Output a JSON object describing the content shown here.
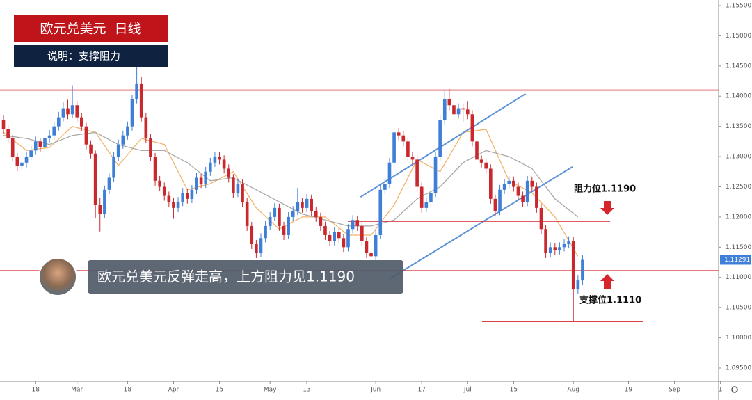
{
  "title": "欧元兑美元  日线",
  "subtitle": "说明：支撑阻力",
  "caption": "欧元兑美元反弹走高，上方阻力见1.1190",
  "chart_data": {
    "type": "candlestick",
    "up_color": "#3f7fd8",
    "down_color": "#c9282d",
    "candles": [
      [
        1.136,
        1.1368,
        1.1338,
        1.1345
      ],
      [
        1.1345,
        1.1352,
        1.1322,
        1.133
      ],
      [
        1.133,
        1.1336,
        1.1292,
        1.13
      ],
      [
        1.13,
        1.1306,
        1.1276,
        1.1285
      ],
      [
        1.1285,
        1.1298,
        1.1278,
        1.129
      ],
      [
        1.129,
        1.1307,
        1.1282,
        1.13
      ],
      [
        1.13,
        1.1318,
        1.1294,
        1.131
      ],
      [
        1.131,
        1.1333,
        1.1303,
        1.1325
      ],
      [
        1.1325,
        1.1331,
        1.1308,
        1.1315
      ],
      [
        1.1315,
        1.1338,
        1.1309,
        1.133
      ],
      [
        1.133,
        1.1344,
        1.1322,
        1.1335
      ],
      [
        1.1335,
        1.1358,
        1.1328,
        1.135
      ],
      [
        1.135,
        1.1374,
        1.1343,
        1.1365
      ],
      [
        1.1365,
        1.139,
        1.1358,
        1.138
      ],
      [
        1.138,
        1.1394,
        1.1362,
        1.137
      ],
      [
        1.137,
        1.1418,
        1.1364,
        1.1385
      ],
      [
        1.1385,
        1.1392,
        1.1358,
        1.1365
      ],
      [
        1.1365,
        1.1372,
        1.1342,
        1.135
      ],
      [
        1.135,
        1.1356,
        1.1312,
        1.132
      ],
      [
        1.132,
        1.1327,
        1.1297,
        1.1305
      ],
      [
        1.1305,
        1.131,
        1.1198,
        1.122
      ],
      [
        1.122,
        1.1232,
        1.1176,
        1.1205
      ],
      [
        1.1205,
        1.1252,
        1.1198,
        1.1245
      ],
      [
        1.1245,
        1.1272,
        1.1238,
        1.1265
      ],
      [
        1.1265,
        1.1308,
        1.1258,
        1.13
      ],
      [
        1.13,
        1.1328,
        1.1293,
        1.132
      ],
      [
        1.132,
        1.1343,
        1.1313,
        1.1335
      ],
      [
        1.1335,
        1.1358,
        1.1328,
        1.135
      ],
      [
        1.135,
        1.1402,
        1.1343,
        1.1395
      ],
      [
        1.1395,
        1.1448,
        1.1388,
        1.142
      ],
      [
        1.142,
        1.1432,
        1.1358,
        1.1365
      ],
      [
        1.1365,
        1.1372,
        1.1322,
        1.133
      ],
      [
        1.133,
        1.1338,
        1.1292,
        1.13
      ],
      [
        1.13,
        1.1306,
        1.1252,
        1.126
      ],
      [
        1.126,
        1.1268,
        1.1243,
        1.125
      ],
      [
        1.125,
        1.1257,
        1.1227,
        1.1235
      ],
      [
        1.1235,
        1.1242,
        1.1217,
        1.1225
      ],
      [
        1.1225,
        1.1232,
        1.1197,
        1.1215
      ],
      [
        1.1215,
        1.1233,
        1.1208,
        1.1225
      ],
      [
        1.1225,
        1.1248,
        1.1218,
        1.124
      ],
      [
        1.124,
        1.1246,
        1.1222,
        1.123
      ],
      [
        1.123,
        1.1253,
        1.1223,
        1.1245
      ],
      [
        1.1245,
        1.1273,
        1.1238,
        1.1265
      ],
      [
        1.1265,
        1.1271,
        1.1248,
        1.1255
      ],
      [
        1.1255,
        1.1283,
        1.1248,
        1.1275
      ],
      [
        1.1275,
        1.1298,
        1.1268,
        1.129
      ],
      [
        1.129,
        1.1308,
        1.1283,
        1.13
      ],
      [
        1.13,
        1.1307,
        1.1287,
        1.1295
      ],
      [
        1.1295,
        1.1302,
        1.1272,
        1.128
      ],
      [
        1.128,
        1.1287,
        1.1257,
        1.1265
      ],
      [
        1.1265,
        1.1271,
        1.1232,
        1.124
      ],
      [
        1.124,
        1.1263,
        1.1233,
        1.1255
      ],
      [
        1.1255,
        1.1262,
        1.1217,
        1.1225
      ],
      [
        1.1225,
        1.1231,
        1.1177,
        1.1185
      ],
      [
        1.1185,
        1.1192,
        1.1147,
        1.1155
      ],
      [
        1.1155,
        1.1162,
        1.1132,
        1.114
      ],
      [
        1.114,
        1.1173,
        1.1133,
        1.1165
      ],
      [
        1.1165,
        1.1193,
        1.1158,
        1.1185
      ],
      [
        1.1185,
        1.1208,
        1.1178,
        1.12
      ],
      [
        1.12,
        1.1223,
        1.1193,
        1.1215
      ],
      [
        1.1215,
        1.1222,
        1.1177,
        1.1185
      ],
      [
        1.1185,
        1.1192,
        1.1162,
        1.117
      ],
      [
        1.117,
        1.1208,
        1.1163,
        1.12
      ],
      [
        1.12,
        1.1218,
        1.1193,
        1.121
      ],
      [
        1.121,
        1.1248,
        1.1203,
        1.1225
      ],
      [
        1.1225,
        1.1232,
        1.1207,
        1.1215
      ],
      [
        1.1215,
        1.1238,
        1.1208,
        1.123
      ],
      [
        1.123,
        1.1237,
        1.1202,
        1.121
      ],
      [
        1.121,
        1.1217,
        1.1192,
        1.12
      ],
      [
        1.12,
        1.1207,
        1.1177,
        1.1185
      ],
      [
        1.1185,
        1.1192,
        1.1162,
        1.117
      ],
      [
        1.117,
        1.1177,
        1.1152,
        1.116
      ],
      [
        1.116,
        1.1183,
        1.1153,
        1.1175
      ],
      [
        1.1175,
        1.1182,
        1.1157,
        1.1165
      ],
      [
        1.1165,
        1.1172,
        1.1142,
        1.115
      ],
      [
        1.115,
        1.1188,
        1.1143,
        1.118
      ],
      [
        1.118,
        1.1203,
        1.1173,
        1.1195
      ],
      [
        1.1195,
        1.1202,
        1.1177,
        1.1185
      ],
      [
        1.1185,
        1.1192,
        1.1152,
        1.116
      ],
      [
        1.116,
        1.1167,
        1.1132,
        1.114
      ],
      [
        1.114,
        1.1147,
        1.1117,
        1.1135
      ],
      [
        1.1135,
        1.1178,
        1.1128,
        1.117
      ],
      [
        1.117,
        1.1253,
        1.1163,
        1.1245
      ],
      [
        1.1245,
        1.1263,
        1.1238,
        1.1255
      ],
      [
        1.1255,
        1.1298,
        1.1248,
        1.129
      ],
      [
        1.129,
        1.1348,
        1.1283,
        1.134
      ],
      [
        1.134,
        1.1347,
        1.1327,
        1.1335
      ],
      [
        1.1335,
        1.1342,
        1.1317,
        1.1325
      ],
      [
        1.1325,
        1.1332,
        1.1292,
        1.13
      ],
      [
        1.13,
        1.1307,
        1.1287,
        1.1295
      ],
      [
        1.1295,
        1.1302,
        1.1242,
        1.125
      ],
      [
        1.125,
        1.1257,
        1.1207,
        1.1215
      ],
      [
        1.1215,
        1.1233,
        1.1208,
        1.1225
      ],
      [
        1.1225,
        1.1248,
        1.1218,
        1.124
      ],
      [
        1.124,
        1.1308,
        1.1233,
        1.13
      ],
      [
        1.13,
        1.1368,
        1.1293,
        1.136
      ],
      [
        1.136,
        1.141,
        1.1353,
        1.1395
      ],
      [
        1.1395,
        1.1412,
        1.1377,
        1.1385
      ],
      [
        1.1385,
        1.1392,
        1.1362,
        1.137
      ],
      [
        1.137,
        1.1388,
        1.1363,
        1.138
      ],
      [
        1.138,
        1.1387,
        1.1358,
        1.1378
      ],
      [
        1.1378,
        1.1392,
        1.1362,
        1.137
      ],
      [
        1.137,
        1.1377,
        1.1317,
        1.1325
      ],
      [
        1.1325,
        1.1332,
        1.1287,
        1.1295
      ],
      [
        1.1295,
        1.1302,
        1.1282,
        1.129
      ],
      [
        1.129,
        1.1297,
        1.1272,
        1.128
      ],
      [
        1.128,
        1.1287,
        1.1222,
        1.123
      ],
      [
        1.123,
        1.1237,
        1.1202,
        1.121
      ],
      [
        1.121,
        1.1253,
        1.1203,
        1.1245
      ],
      [
        1.1245,
        1.1263,
        1.1238,
        1.1255
      ],
      [
        1.1255,
        1.1268,
        1.1248,
        1.126
      ],
      [
        1.126,
        1.1267,
        1.1242,
        1.125
      ],
      [
        1.125,
        1.1257,
        1.1227,
        1.1235
      ],
      [
        1.1235,
        1.1242,
        1.1217,
        1.1225
      ],
      [
        1.1225,
        1.1268,
        1.1218,
        1.126
      ],
      [
        1.126,
        1.1267,
        1.1242,
        1.125
      ],
      [
        1.125,
        1.1257,
        1.1207,
        1.1215
      ],
      [
        1.1215,
        1.1222,
        1.1172,
        1.118
      ],
      [
        1.118,
        1.1187,
        1.1132,
        1.114
      ],
      [
        1.114,
        1.1158,
        1.1133,
        1.115
      ],
      [
        1.115,
        1.1157,
        1.1137,
        1.1145
      ],
      [
        1.1145,
        1.1158,
        1.1138,
        1.115
      ],
      [
        1.115,
        1.1163,
        1.1143,
        1.1155
      ],
      [
        1.1155,
        1.1168,
        1.1148,
        1.116
      ],
      [
        1.116,
        1.1167,
        1.1027,
        1.108
      ],
      [
        1.108,
        1.1103,
        1.1073,
        1.1095
      ],
      [
        1.1095,
        1.1137,
        1.1088,
        1.11291
      ]
    ],
    "ma": [
      {
        "color": "#f2b46b",
        "x": [
          0,
          5,
          10,
          15,
          20,
          25,
          30,
          35,
          40,
          45,
          50,
          55,
          60,
          65,
          70,
          75,
          80,
          85,
          90,
          95,
          100,
          105,
          110,
          115,
          120,
          125
        ],
        "values": [
          1.134,
          1.131,
          1.1315,
          1.135,
          1.134,
          1.1285,
          1.133,
          1.132,
          1.1245,
          1.1255,
          1.1275,
          1.1215,
          1.118,
          1.12,
          1.12,
          1.117,
          1.117,
          1.122,
          1.1295,
          1.1275,
          1.134,
          1.1345,
          1.126,
          1.124,
          1.12,
          1.1135
        ]
      },
      {
        "color": "#a8a8a8",
        "x": [
          0,
          5,
          10,
          15,
          20,
          25,
          30,
          35,
          40,
          45,
          50,
          55,
          60,
          65,
          70,
          75,
          80,
          85,
          90,
          95,
          100,
          105,
          110,
          115,
          120,
          125
        ],
        "values": [
          1.1335,
          1.133,
          1.132,
          1.1335,
          1.134,
          1.132,
          1.131,
          1.131,
          1.129,
          1.126,
          1.1265,
          1.1245,
          1.1225,
          1.1205,
          1.1195,
          1.1185,
          1.1185,
          1.1195,
          1.123,
          1.125,
          1.129,
          1.131,
          1.13,
          1.128,
          1.123,
          1.12
        ]
      }
    ],
    "levels": [
      {
        "value": 1.141,
        "color": "#d6262c"
      },
      {
        "value": 1.1193,
        "color": "#d6262c"
      },
      {
        "value": 1.1111,
        "color": "#d6262c"
      },
      {
        "value": 1.1027,
        "color": "#d6262c"
      }
    ],
    "trend_lines": [
      {
        "color": "#5b92d6",
        "x": [
          77.7,
          113.6
        ],
        "values": [
          1.1233,
          1.1404
        ]
      },
      {
        "color": "#5b92d6",
        "x": [
          84.1,
          123.8
        ],
        "values": [
          1.1098,
          1.1283
        ]
      }
    ],
    "annotations": [
      "阻力位1.1190",
      "支撑位1.1110"
    ],
    "last_price": {
      "value": 1.11291,
      "label": "1.11291"
    },
    "xlim": [
      -0.76,
      155.6
    ],
    "ylim": [
      1.09281,
      1.15592
    ],
    "yticks": [
      {
        "value": 1.155,
        "label": "1.15500"
      },
      {
        "value": 1.15,
        "label": "1.15000"
      },
      {
        "value": 1.145,
        "label": "1.14500"
      },
      {
        "value": 1.14,
        "label": "1.14000"
      },
      {
        "value": 1.135,
        "label": "1.13500"
      },
      {
        "value": 1.13,
        "label": "1.13000"
      },
      {
        "value": 1.125,
        "label": "1.12500"
      },
      {
        "value": 1.12,
        "label": "1.12000"
      },
      {
        "value": 1.115,
        "label": "1.11500"
      },
      {
        "value": 1.11,
        "label": "1.11000"
      },
      {
        "value": 1.105,
        "label": "1.10500"
      },
      {
        "value": 1.1,
        "label": "1.10000"
      },
      {
        "value": 1.095,
        "label": "1.09500"
      }
    ],
    "xticks": [
      {
        "value": 7,
        "label": "18"
      },
      {
        "value": 16,
        "label": "Mar"
      },
      {
        "value": 27,
        "label": "18"
      },
      {
        "value": 37,
        "label": "Apr"
      },
      {
        "value": 47,
        "label": "15"
      },
      {
        "value": 58,
        "label": "May"
      },
      {
        "value": 66,
        "label": "13"
      },
      {
        "value": 81,
        "label": "Jun"
      },
      {
        "value": 91,
        "label": "17"
      },
      {
        "value": 101,
        "label": "Jul"
      },
      {
        "value": 111,
        "label": "15"
      },
      {
        "value": 124,
        "label": "Aug"
      },
      {
        "value": 136,
        "label": "19"
      },
      {
        "value": 146,
        "label": "Sep"
      },
      {
        "value": 156,
        "label": "1"
      }
    ]
  }
}
